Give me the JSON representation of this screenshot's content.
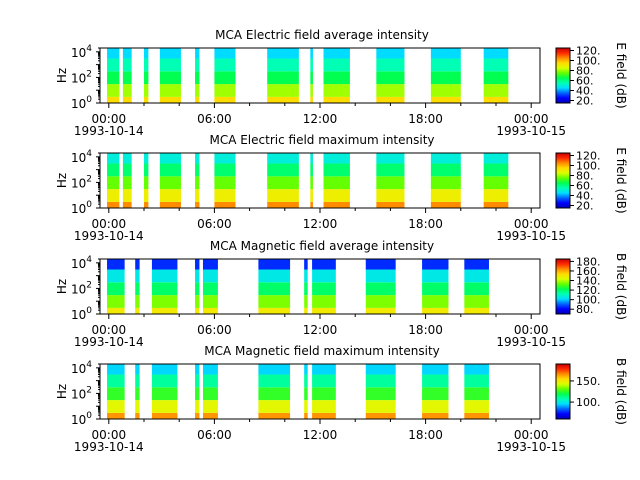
{
  "figure": {
    "gradient_stops": [
      "#0000b4",
      "#0000ff",
      "#0064ff",
      "#00dcff",
      "#00ffb4",
      "#00ff50",
      "#64ff00",
      "#dcff00",
      "#ffdc00",
      "#ff8c00",
      "#ff2800",
      "#c80000"
    ]
  },
  "chart_data": [
    {
      "type": "heatmap",
      "title": "MCA  Electric field average intensity",
      "ylabel": "Hz",
      "y_scale": "log",
      "ylim": [
        1,
        20000
      ],
      "yticks": [
        "10^0",
        "10^2",
        "10^4"
      ],
      "x_ticks": [
        "00:00",
        "06:00",
        "12:00",
        "18:00",
        "00:00"
      ],
      "x_dates": [
        "1993-10-14",
        "1993-10-15"
      ],
      "xlim_hours": [
        -0.5,
        24.5
      ],
      "colorbar_label": "E field (dB)",
      "colorbar_ticks": [
        20,
        40,
        60,
        80,
        100,
        120
      ],
      "colorbar_range": [
        15,
        125
      ],
      "data_intervals_hours": [
        [
          -0.1,
          0.6
        ],
        [
          0.8,
          1.3
        ],
        [
          2.0,
          2.25
        ],
        [
          2.9,
          4.1
        ],
        [
          4.9,
          5.15
        ],
        [
          6.0,
          7.2
        ],
        [
          9.0,
          10.8
        ],
        [
          11.45,
          11.6
        ],
        [
          12.2,
          13.7
        ],
        [
          15.2,
          16.8
        ],
        [
          18.3,
          20.0
        ],
        [
          21.3,
          22.7
        ]
      ],
      "intensity_bands_dB": [
        [
          1,
          3,
          95
        ],
        [
          3,
          30,
          80
        ],
        [
          30,
          300,
          65
        ],
        [
          300,
          3000,
          55
        ],
        [
          3000,
          20000,
          45
        ]
      ]
    },
    {
      "type": "heatmap",
      "title": "MCA  Electric field maximum intensity",
      "ylabel": "Hz",
      "y_scale": "log",
      "ylim": [
        1,
        20000
      ],
      "yticks": [
        "10^0",
        "10^2",
        "10^4"
      ],
      "x_ticks": [
        "00:00",
        "06:00",
        "12:00",
        "18:00",
        "00:00"
      ],
      "x_dates": [
        "1993-10-14",
        "1993-10-15"
      ],
      "xlim_hours": [
        -0.5,
        24.5
      ],
      "colorbar_label": "E field (dB)",
      "colorbar_ticks": [
        20,
        40,
        60,
        80,
        100,
        120
      ],
      "colorbar_range": [
        15,
        125
      ],
      "data_intervals_hours": [
        [
          -0.1,
          0.6
        ],
        [
          0.8,
          1.3
        ],
        [
          2.0,
          2.25
        ],
        [
          2.9,
          4.1
        ],
        [
          4.9,
          5.15
        ],
        [
          6.0,
          7.2
        ],
        [
          9.0,
          10.8
        ],
        [
          11.45,
          11.6
        ],
        [
          12.2,
          13.7
        ],
        [
          15.2,
          16.8
        ],
        [
          18.3,
          20.0
        ],
        [
          21.3,
          22.7
        ]
      ],
      "intensity_bands_dB": [
        [
          1,
          3,
          105
        ],
        [
          3,
          30,
          90
        ],
        [
          30,
          300,
          75
        ],
        [
          300,
          3000,
          62
        ],
        [
          3000,
          20000,
          50
        ]
      ]
    },
    {
      "type": "heatmap",
      "title": "MCA  Magnetic field average intensity",
      "ylabel": "Hz",
      "y_scale": "log",
      "ylim": [
        1,
        20000
      ],
      "yticks": [
        "10^0",
        "10^2",
        "10^4"
      ],
      "x_ticks": [
        "00:00",
        "06:00",
        "12:00",
        "18:00",
        "00:00"
      ],
      "x_dates": [
        "1993-10-14",
        "1993-10-15"
      ],
      "xlim_hours": [
        -0.5,
        24.5
      ],
      "colorbar_label": "B field (dB)",
      "colorbar_ticks": [
        80,
        100,
        120,
        140,
        160,
        180
      ],
      "colorbar_range": [
        70,
        185
      ],
      "data_intervals_hours": [
        [
          -0.1,
          0.9
        ],
        [
          1.5,
          1.75
        ],
        [
          2.45,
          3.9
        ],
        [
          4.9,
          5.15
        ],
        [
          5.35,
          6.2
        ],
        [
          8.5,
          10.3
        ],
        [
          11.1,
          11.3
        ],
        [
          11.55,
          12.9
        ],
        [
          14.6,
          16.3
        ],
        [
          17.8,
          19.3
        ],
        [
          20.2,
          21.6
        ]
      ],
      "intensity_bands_dB": [
        [
          1,
          3,
          150
        ],
        [
          3,
          30,
          135
        ],
        [
          30,
          300,
          120
        ],
        [
          300,
          3000,
          105
        ],
        [
          3000,
          20000,
          85
        ]
      ]
    },
    {
      "type": "heatmap",
      "title": "MCA  Magnetic field maximum intensity",
      "ylabel": "Hz",
      "y_scale": "log",
      "ylim": [
        1,
        20000
      ],
      "yticks": [
        "10^0",
        "10^2",
        "10^4"
      ],
      "x_ticks": [
        "00:00",
        "06:00",
        "12:00",
        "18:00",
        "00:00"
      ],
      "x_dates": [
        "1993-10-14",
        "1993-10-15"
      ],
      "xlim_hours": [
        -0.5,
        24.5
      ],
      "colorbar_label": "B field (dB)",
      "colorbar_ticks": [
        100,
        150
      ],
      "colorbar_range": [
        60,
        190
      ],
      "data_intervals_hours": [
        [
          -0.1,
          0.9
        ],
        [
          1.5,
          1.75
        ],
        [
          2.45,
          3.9
        ],
        [
          4.9,
          5.15
        ],
        [
          5.35,
          6.2
        ],
        [
          8.5,
          10.3
        ],
        [
          11.1,
          11.3
        ],
        [
          11.55,
          12.9
        ],
        [
          14.6,
          16.3
        ],
        [
          17.8,
          19.3
        ],
        [
          20.2,
          21.6
        ]
      ],
      "intensity_bands_dB": [
        [
          1,
          3,
          165
        ],
        [
          3,
          30,
          145
        ],
        [
          30,
          300,
          125
        ],
        [
          300,
          3000,
          110
        ],
        [
          3000,
          20000,
          95
        ]
      ]
    }
  ]
}
